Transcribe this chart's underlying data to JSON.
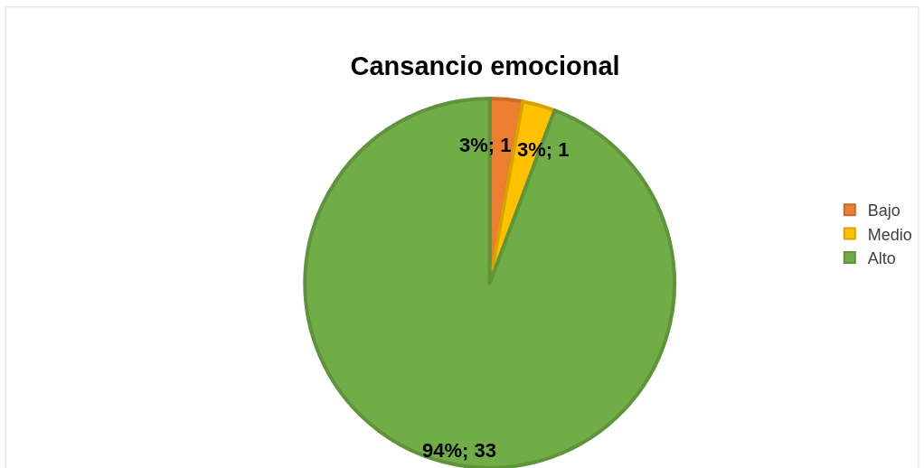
{
  "chart_data": {
    "type": "pie",
    "title": "Cansancio emocional",
    "categories": [
      "Bajo",
      "Medio",
      "Alto"
    ],
    "values": [
      1,
      1,
      33
    ],
    "value_labels": [
      "3%; 1",
      "3%; 1",
      "94%; 33"
    ],
    "colors": [
      "#ed7d31",
      "#ffc000",
      "#70ad47"
    ],
    "legend": "right"
  }
}
